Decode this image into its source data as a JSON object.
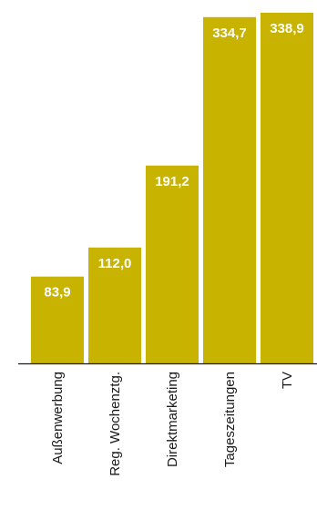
{
  "chart_data": {
    "type": "bar",
    "categories": [
      "Außenwerbung",
      "Reg. Wochenztg.",
      "Direktmarketing",
      "Tageszeitungen",
      "TV"
    ],
    "values": [
      83.9,
      112.0,
      191.2,
      334.7,
      338.9
    ],
    "value_labels": [
      "83,9",
      "112,0",
      "191,2",
      "334,7",
      "338,9"
    ],
    "title": "",
    "xlabel": "",
    "ylabel": "",
    "ylim": [
      0,
      338.9
    ],
    "grid": false,
    "legend": "none",
    "bar_color": "#c8b400",
    "value_label_color": "#ffffff",
    "axis_color": "#1a1a1a",
    "label_color": "#1a1a1a"
  }
}
